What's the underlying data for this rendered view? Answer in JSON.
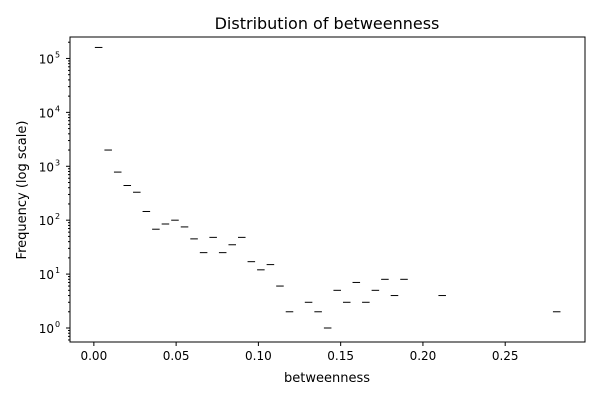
{
  "chart_data": {
    "type": "bar",
    "title": "Distribution of betweenness",
    "xlabel": "betweenness",
    "ylabel": "Frequency (log scale)",
    "yscale": "log",
    "grid": false,
    "xlim": [
      -0.0145,
      0.2985
    ],
    "ylim": [
      0.55,
      250000
    ],
    "x_ticks": [
      {
        "value": 0.0,
        "label": "0.00"
      },
      {
        "value": 0.05,
        "label": "0.05"
      },
      {
        "value": 0.1,
        "label": "0.10"
      },
      {
        "value": 0.15,
        "label": "0.15"
      },
      {
        "value": 0.2,
        "label": "0.20"
      },
      {
        "value": 0.25,
        "label": "0.25"
      }
    ],
    "y_ticks": [
      {
        "value": 1,
        "base": "10",
        "exp": "0"
      },
      {
        "value": 10,
        "base": "10",
        "exp": "1"
      },
      {
        "value": 100,
        "base": "10",
        "exp": "2"
      },
      {
        "value": 1000,
        "base": "10",
        "exp": "3"
      },
      {
        "value": 10000,
        "base": "10",
        "exp": "4"
      },
      {
        "value": 100000,
        "base": "10",
        "exp": "5"
      }
    ],
    "bin_width": 0.0058,
    "bins": [
      {
        "x": 0.0029,
        "count": 160000
      },
      {
        "x": 0.0087,
        "count": 2000
      },
      {
        "x": 0.0145,
        "count": 780
      },
      {
        "x": 0.0203,
        "count": 440
      },
      {
        "x": 0.0261,
        "count": 330
      },
      {
        "x": 0.0319,
        "count": 145
      },
      {
        "x": 0.0377,
        "count": 68
      },
      {
        "x": 0.0435,
        "count": 85
      },
      {
        "x": 0.0493,
        "count": 100
      },
      {
        "x": 0.0551,
        "count": 75
      },
      {
        "x": 0.0609,
        "count": 45
      },
      {
        "x": 0.0667,
        "count": 25
      },
      {
        "x": 0.0725,
        "count": 48
      },
      {
        "x": 0.0783,
        "count": 25
      },
      {
        "x": 0.0841,
        "count": 35
      },
      {
        "x": 0.0899,
        "count": 48
      },
      {
        "x": 0.0957,
        "count": 17
      },
      {
        "x": 0.1015,
        "count": 12
      },
      {
        "x": 0.1073,
        "count": 15
      },
      {
        "x": 0.1131,
        "count": 6
      },
      {
        "x": 0.1189,
        "count": 2
      },
      {
        "x": 0.1305,
        "count": 3
      },
      {
        "x": 0.1363,
        "count": 2
      },
      {
        "x": 0.1421,
        "count": 1
      },
      {
        "x": 0.1479,
        "count": 5
      },
      {
        "x": 0.1537,
        "count": 3
      },
      {
        "x": 0.1595,
        "count": 7
      },
      {
        "x": 0.1653,
        "count": 3
      },
      {
        "x": 0.1711,
        "count": 5
      },
      {
        "x": 0.1769,
        "count": 8
      },
      {
        "x": 0.1827,
        "count": 4
      },
      {
        "x": 0.1885,
        "count": 8
      },
      {
        "x": 0.2117,
        "count": 4
      },
      {
        "x": 0.2813,
        "count": 2
      }
    ]
  }
}
